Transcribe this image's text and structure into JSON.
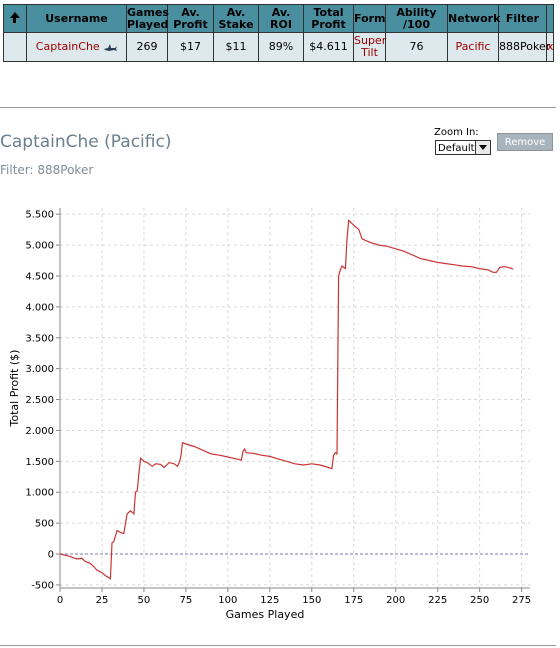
{
  "table": {
    "headers": [
      {
        "key": "arrow",
        "label": ""
      },
      {
        "key": "username",
        "label": "Username"
      },
      {
        "key": "games",
        "label": "Games Played"
      },
      {
        "key": "avprofit",
        "label": "Av. Profit"
      },
      {
        "key": "avstake",
        "label": "Av. Stake"
      },
      {
        "key": "avroi",
        "label": "Av. ROI"
      },
      {
        "key": "totalprofit",
        "label": "Total Profit"
      },
      {
        "key": "form",
        "label": "Form"
      },
      {
        "key": "ability",
        "label": "Ability /100"
      },
      {
        "key": "network",
        "label": "Network"
      },
      {
        "key": "filter",
        "label": "Filter"
      }
    ],
    "row": {
      "username": "CaptainChe",
      "games": "269",
      "avprofit": "$17",
      "avstake": "$11",
      "avroi": "89%",
      "totalprofit": "$4.611",
      "form": "Super Tilt",
      "ability": "76",
      "network": "Pacific",
      "filter": "888Poker",
      "remove": "x"
    }
  },
  "detail": {
    "title": "CaptainChe (Pacific)",
    "filter": "Filter: 888Poker",
    "zoom_label": "Zoom In:",
    "zoom_value": "Default",
    "remove_label": "Remove"
  },
  "chart_data": {
    "type": "line",
    "xlabel": "Games Played",
    "ylabel": "Total Profit ($)",
    "xlim": [
      0,
      280
    ],
    "ylim": [
      -550,
      5600
    ],
    "xticks": [
      0,
      25,
      50,
      75,
      100,
      125,
      150,
      175,
      200,
      225,
      250,
      275
    ],
    "yticks": [
      {
        "v": -500,
        "label": "-500"
      },
      {
        "v": 0,
        "label": "0"
      },
      {
        "v": 500,
        "label": "500"
      },
      {
        "v": 1000,
        "label": "1.000"
      },
      {
        "v": 1500,
        "label": "1.500"
      },
      {
        "v": 2000,
        "label": "2.000"
      },
      {
        "v": 2500,
        "label": "2.500"
      },
      {
        "v": 3000,
        "label": "3.000"
      },
      {
        "v": 3500,
        "label": "3.500"
      },
      {
        "v": 4000,
        "label": "4.000"
      },
      {
        "v": 4500,
        "label": "4.500"
      },
      {
        "v": 5000,
        "label": "5.000"
      },
      {
        "v": 5500,
        "label": "5.500"
      }
    ],
    "grid": true,
    "line_color": "#cc3333",
    "zero_line_color": "#7a7aa8",
    "series": [
      {
        "x": [
          0,
          5,
          10,
          13,
          15,
          18,
          20,
          22,
          25,
          27,
          29,
          30,
          31,
          32,
          34,
          36,
          38,
          40,
          42,
          44,
          45,
          46,
          47,
          48,
          50,
          52,
          55,
          57,
          60,
          62,
          65,
          68,
          70,
          71,
          72,
          73,
          75,
          80,
          85,
          90,
          95,
          100,
          105,
          108,
          109,
          110,
          111,
          115,
          120,
          125,
          130,
          135,
          140,
          145,
          150,
          155,
          160,
          162,
          163,
          164,
          165,
          166,
          167,
          168,
          170,
          171,
          172,
          175,
          178,
          180,
          185,
          190,
          195,
          200,
          205,
          210,
          215,
          220,
          225,
          230,
          235,
          240,
          245,
          250,
          255,
          258,
          260,
          262,
          265,
          268,
          270
        ],
        "y": [
          0,
          -30,
          -80,
          -70,
          -120,
          -150,
          -200,
          -260,
          -300,
          -350,
          -380,
          -400,
          180,
          200,
          380,
          350,
          330,
          650,
          700,
          650,
          1000,
          1020,
          1300,
          1550,
          1500,
          1480,
          1420,
          1460,
          1450,
          1400,
          1480,
          1460,
          1420,
          1480,
          1580,
          1800,
          1780,
          1740,
          1680,
          1620,
          1600,
          1570,
          1540,
          1520,
          1660,
          1700,
          1640,
          1630,
          1600,
          1580,
          1540,
          1500,
          1460,
          1440,
          1460,
          1440,
          1400,
          1380,
          1600,
          1640,
          1620,
          4500,
          4600,
          4660,
          4620,
          5100,
          5400,
          5320,
          5250,
          5100,
          5040,
          5000,
          4980,
          4940,
          4900,
          4840,
          4780,
          4750,
          4720,
          4700,
          4680,
          4660,
          4650,
          4620,
          4600,
          4560,
          4560,
          4640,
          4650,
          4630,
          4611
        ]
      }
    ]
  }
}
